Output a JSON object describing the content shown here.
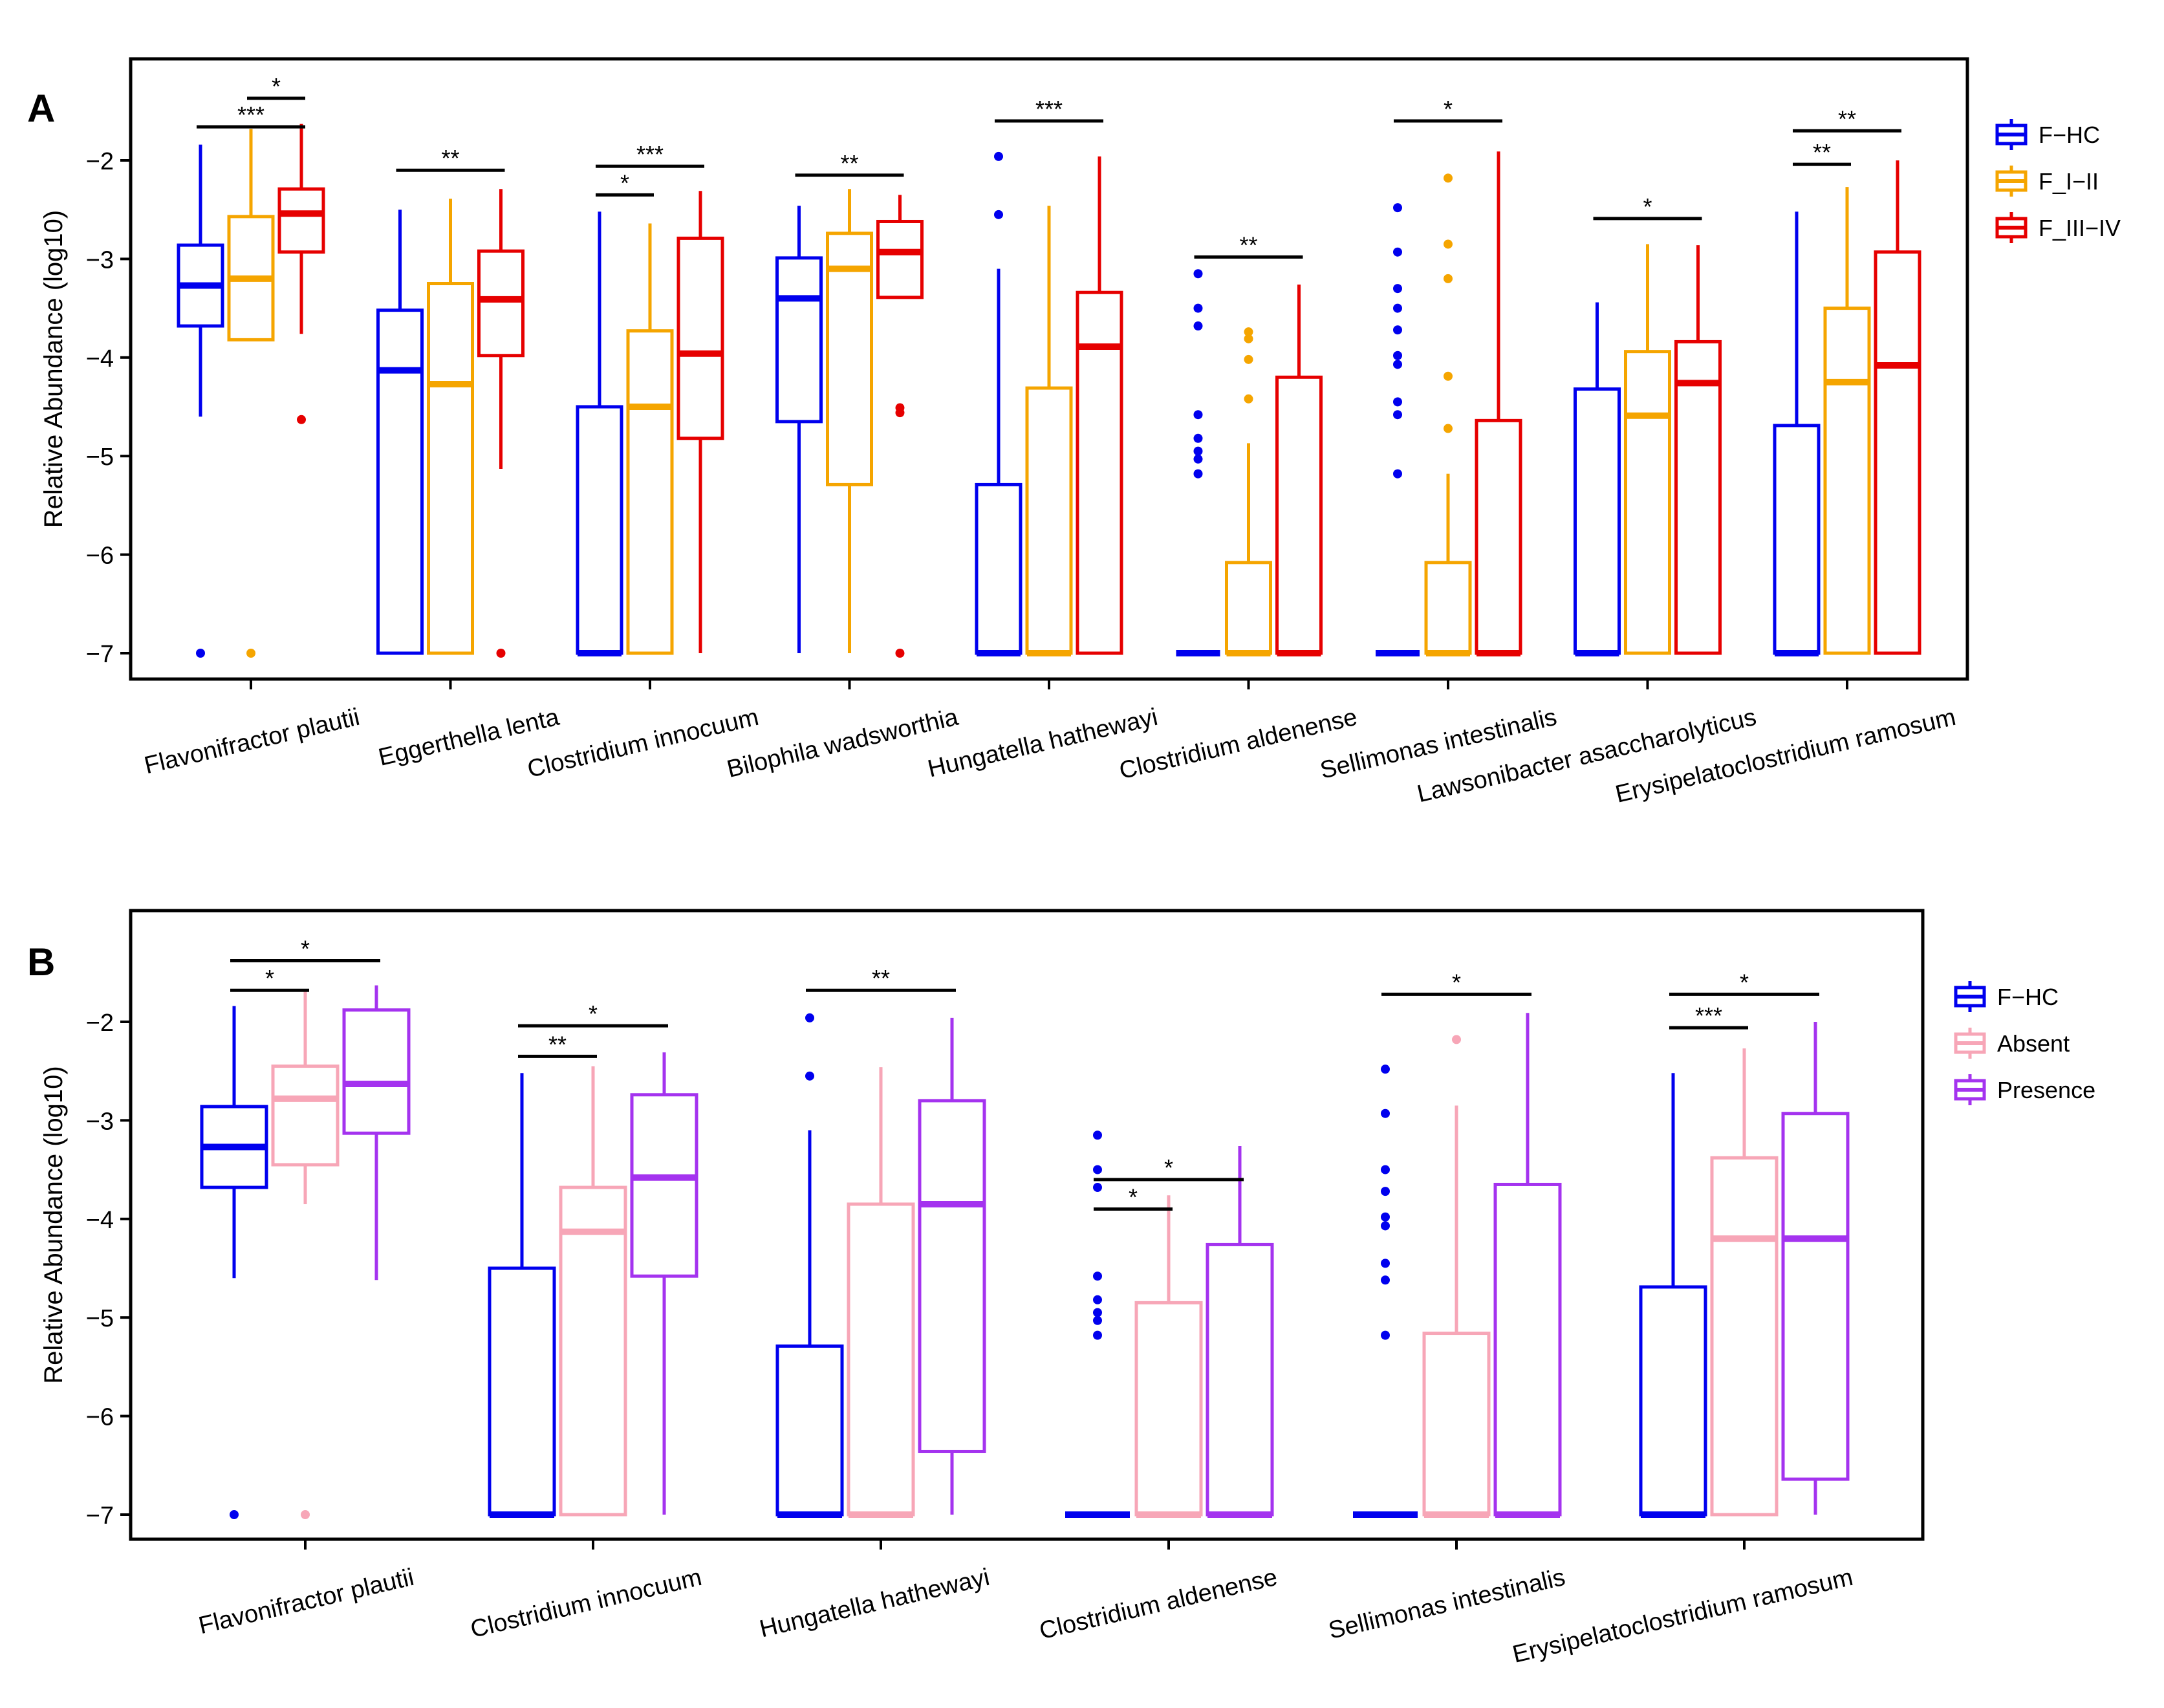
{
  "chart_data": [
    {
      "type": "box",
      "panel_label": "A",
      "ylabel": "Relative Abundance (log10)",
      "ylim": [
        -7.27,
        -1.0
      ],
      "yticks": [
        -2,
        -3,
        -4,
        -5,
        -6,
        -7
      ],
      "ytick_labels": [
        "−2",
        "−3",
        "−4",
        "−5",
        "−6",
        "−7"
      ],
      "categories": [
        "Flavonifractor plautii",
        "Eggerthella lenta",
        "Clostridium innocuum",
        "Bilophila wadsworthia",
        "Hungatella hathewayi",
        "Clostridium aldenense",
        "Sellimonas intestinalis",
        "Lawsonibacter asaccharolyticus",
        "Erysipelatoclostridium ramosum"
      ],
      "series": [
        {
          "name": "F−HC",
          "color": "#0000ee",
          "boxes": [
            {
              "min": -4.6,
              "q1": -3.68,
              "median": -3.27,
              "q3": -2.86,
              "max": -1.84,
              "outliers": [
                -7.0
              ]
            },
            {
              "min": -7.0,
              "q1": -7.0,
              "median": -4.13,
              "q3": -3.52,
              "max": -2.5,
              "outliers": []
            },
            {
              "min": -7.0,
              "q1": -7.0,
              "median": -7.0,
              "q3": -4.5,
              "max": -2.52,
              "outliers": []
            },
            {
              "min": -7.0,
              "q1": -4.65,
              "median": -3.4,
              "q3": -2.99,
              "max": -2.46,
              "outliers": []
            },
            {
              "min": -7.0,
              "q1": -7.0,
              "median": -7.0,
              "q3": -5.29,
              "max": -3.1,
              "outliers": [
                -2.55,
                -1.96
              ]
            },
            {
              "min": -7.0,
              "q1": -7.0,
              "median": -7.0,
              "q3": -7.0,
              "max": -7.0,
              "outliers": [
                -3.15,
                -3.5,
                -3.68,
                -4.58,
                -4.82,
                -4.95,
                -5.03,
                -5.18
              ]
            },
            {
              "min": -7.0,
              "q1": -7.0,
              "median": -7.0,
              "q3": -7.0,
              "max": -7.0,
              "outliers": [
                -2.48,
                -2.93,
                -3.3,
                -3.5,
                -3.72,
                -3.98,
                -4.07,
                -4.45,
                -4.58,
                -5.18
              ]
            },
            {
              "min": -7.0,
              "q1": -7.0,
              "median": -7.0,
              "q3": -4.32,
              "max": -3.44,
              "outliers": []
            },
            {
              "min": -7.0,
              "q1": -7.0,
              "median": -7.0,
              "q3": -4.69,
              "max": -2.52,
              "outliers": []
            }
          ]
        },
        {
          "name": "F_I−II",
          "color": "#f5a500",
          "boxes": [
            {
              "min": -3.82,
              "q1": -3.82,
              "median": -3.2,
              "q3": -2.57,
              "max": -1.68,
              "outliers": [
                -7.0
              ]
            },
            {
              "min": -7.0,
              "q1": -7.0,
              "median": -4.27,
              "q3": -3.25,
              "max": -2.39,
              "outliers": []
            },
            {
              "min": -7.0,
              "q1": -7.0,
              "median": -4.5,
              "q3": -3.73,
              "max": -2.64,
              "outliers": []
            },
            {
              "min": -7.0,
              "q1": -5.29,
              "median": -3.1,
              "q3": -2.74,
              "max": -2.29,
              "outliers": []
            },
            {
              "min": -7.0,
              "q1": -7.0,
              "median": -7.0,
              "q3": -4.31,
              "max": -2.46,
              "outliers": []
            },
            {
              "min": -7.0,
              "q1": -7.0,
              "median": -7.0,
              "q3": -6.08,
              "max": -4.87,
              "outliers": [
                -3.74,
                -3.81,
                -4.02,
                -4.42
              ]
            },
            {
              "min": -7.0,
              "q1": -7.0,
              "median": -7.0,
              "q3": -6.08,
              "max": -5.18,
              "outliers": [
                -2.18,
                -2.85,
                -3.2,
                -4.19,
                -4.72
              ]
            },
            {
              "min": -7.0,
              "q1": -7.0,
              "median": -4.59,
              "q3": -3.94,
              "max": -2.85,
              "outliers": []
            },
            {
              "min": -7.0,
              "q1": -7.0,
              "median": -4.25,
              "q3": -3.5,
              "max": -2.27,
              "outliers": []
            }
          ]
        },
        {
          "name": "F_III−IV",
          "color": "#e60000",
          "boxes": [
            {
              "min": -3.76,
              "q1": -2.93,
              "median": -2.54,
              "q3": -2.29,
              "max": -1.63,
              "outliers": [
                -4.63
              ]
            },
            {
              "min": -5.13,
              "q1": -3.98,
              "median": -3.41,
              "q3": -2.92,
              "max": -2.29,
              "outliers": [
                -7.0
              ]
            },
            {
              "min": -7.0,
              "q1": -4.82,
              "median": -3.96,
              "q3": -2.79,
              "max": -2.31,
              "outliers": []
            },
            {
              "min": -3.39,
              "q1": -3.39,
              "median": -2.93,
              "q3": -2.62,
              "max": -2.35,
              "outliers": [
                -4.51,
                -4.56,
                -7.0
              ]
            },
            {
              "min": -7.0,
              "q1": -7.0,
              "median": -3.89,
              "q3": -3.34,
              "max": -1.96,
              "outliers": []
            },
            {
              "min": -7.0,
              "q1": -7.0,
              "median": -7.0,
              "q3": -4.2,
              "max": -3.26,
              "outliers": []
            },
            {
              "min": -7.0,
              "q1": -7.0,
              "median": -7.0,
              "q3": -4.64,
              "max": -1.91,
              "outliers": []
            },
            {
              "min": -7.0,
              "q1": -7.0,
              "median": -4.26,
              "q3": -3.84,
              "max": -2.86,
              "outliers": []
            },
            {
              "min": -7.0,
              "q1": -7.0,
              "median": -4.08,
              "q3": -2.93,
              "max": -2.0,
              "outliers": []
            }
          ]
        }
      ],
      "significance": [
        {
          "category": 0,
          "from": 0,
          "to": 2,
          "level": -1.66,
          "label": "***"
        },
        {
          "category": 0,
          "from": 1,
          "to": 2,
          "level": -1.37,
          "label": "*"
        },
        {
          "category": 1,
          "from": 0,
          "to": 2,
          "level": -2.1,
          "label": "**"
        },
        {
          "category": 2,
          "from": 0,
          "to": 2,
          "level": -2.06,
          "label": "***"
        },
        {
          "category": 2,
          "from": 0,
          "to": 1,
          "level": -2.35,
          "label": "*"
        },
        {
          "category": 3,
          "from": 0,
          "to": 2,
          "level": -2.15,
          "label": "**"
        },
        {
          "category": 4,
          "from": 0,
          "to": 2,
          "level": -1.6,
          "label": "***"
        },
        {
          "category": 5,
          "from": 0,
          "to": 2,
          "level": -2.98,
          "label": "**"
        },
        {
          "category": 6,
          "from": 0,
          "to": 2,
          "level": -1.6,
          "label": "*"
        },
        {
          "category": 7,
          "from": 0,
          "to": 2,
          "level": -2.59,
          "label": "*"
        },
        {
          "category": 8,
          "from": 0,
          "to": 2,
          "level": -1.7,
          "label": "**"
        },
        {
          "category": 8,
          "from": 0,
          "to": 1,
          "level": -2.04,
          "label": "**"
        }
      ],
      "legend": {
        "position": "right",
        "entries": [
          "F−HC",
          "F_I−II",
          "F_III−IV"
        ]
      }
    },
    {
      "type": "box",
      "panel_label": "B",
      "ylabel": "Relative Abundance (log10)",
      "ylim": [
        -7.27,
        -1.0
      ],
      "yticks": [
        -2,
        -3,
        -4,
        -5,
        -6,
        -7
      ],
      "ytick_labels": [
        "−2",
        "−3",
        "−4",
        "−5",
        "−6",
        "−7"
      ],
      "categories": [
        "Flavonifractor plautii",
        "Clostridium innocuum",
        "Hungatella hathewayi",
        "Clostridium aldenense",
        "Sellimonas intestinalis",
        "Erysipelatoclostridium ramosum"
      ],
      "series": [
        {
          "name": "F−HC",
          "color": "#0000ee",
          "boxes": [
            {
              "min": -4.6,
              "q1": -3.68,
              "median": -3.27,
              "q3": -2.86,
              "max": -1.84,
              "outliers": [
                -7.0
              ]
            },
            {
              "min": -7.0,
              "q1": -7.0,
              "median": -7.0,
              "q3": -4.5,
              "max": -2.52,
              "outliers": []
            },
            {
              "min": -7.0,
              "q1": -7.0,
              "median": -7.0,
              "q3": -5.29,
              "max": -3.1,
              "outliers": [
                -2.55,
                -1.96
              ]
            },
            {
              "min": -7.0,
              "q1": -7.0,
              "median": -7.0,
              "q3": -7.0,
              "max": -7.0,
              "outliers": [
                -3.15,
                -3.5,
                -3.68,
                -4.58,
                -4.82,
                -4.95,
                -5.03,
                -5.18
              ]
            },
            {
              "min": -7.0,
              "q1": -7.0,
              "median": -7.0,
              "q3": -7.0,
              "max": -7.0,
              "outliers": [
                -2.48,
                -2.93,
                -3.5,
                -3.72,
                -3.98,
                -4.07,
                -4.45,
                -4.62,
                -5.18
              ]
            },
            {
              "min": -7.0,
              "q1": -7.0,
              "median": -7.0,
              "q3": -4.69,
              "max": -2.52,
              "outliers": []
            }
          ]
        },
        {
          "name": "Absent",
          "color": "#f7a6b7",
          "boxes": [
            {
              "min": -3.85,
              "q1": -3.45,
              "median": -2.78,
              "q3": -2.45,
              "max": -1.68,
              "outliers": [
                -7.0
              ]
            },
            {
              "min": -7.0,
              "q1": -7.0,
              "median": -4.13,
              "q3": -3.68,
              "max": -2.45,
              "outliers": []
            },
            {
              "min": -7.0,
              "q1": -7.0,
              "median": -7.0,
              "q3": -3.85,
              "max": -2.46,
              "outliers": []
            },
            {
              "min": -7.0,
              "q1": -7.0,
              "median": -7.0,
              "q3": -4.85,
              "max": -3.76,
              "outliers": []
            },
            {
              "min": -7.0,
              "q1": -7.0,
              "median": -7.0,
              "q3": -5.16,
              "max": -2.85,
              "outliers": [
                -2.18
              ]
            },
            {
              "min": -7.0,
              "q1": -7.0,
              "median": -4.2,
              "q3": -3.38,
              "max": -2.27,
              "outliers": []
            }
          ]
        },
        {
          "name": "Presence",
          "color": "#a433ef",
          "boxes": [
            {
              "min": -4.62,
              "q1": -3.13,
              "median": -2.63,
              "q3": -1.88,
              "max": -1.63,
              "outliers": []
            },
            {
              "min": -7.0,
              "q1": -4.58,
              "median": -3.58,
              "q3": -2.74,
              "max": -2.31,
              "outliers": []
            },
            {
              "min": -7.0,
              "q1": -6.36,
              "median": -3.85,
              "q3": -2.8,
              "max": -1.96,
              "outliers": []
            },
            {
              "min": -7.0,
              "q1": -7.0,
              "median": -7.0,
              "q3": -4.26,
              "max": -3.26,
              "outliers": []
            },
            {
              "min": -7.0,
              "q1": -7.0,
              "median": -7.0,
              "q3": -3.65,
              "max": -1.91,
              "outliers": []
            },
            {
              "min": -7.0,
              "q1": -6.64,
              "median": -4.2,
              "q3": -2.93,
              "max": -2.0,
              "outliers": []
            }
          ]
        }
      ],
      "significance": [
        {
          "category": 0,
          "from": 0,
          "to": 2,
          "level": -1.38,
          "label": "*"
        },
        {
          "category": 0,
          "from": 0,
          "to": 1,
          "level": -1.68,
          "label": "*"
        },
        {
          "category": 1,
          "from": 0,
          "to": 2,
          "level": -2.04,
          "label": "*"
        },
        {
          "category": 1,
          "from": 0,
          "to": 1,
          "level": -2.35,
          "label": "**"
        },
        {
          "category": 2,
          "from": 0,
          "to": 2,
          "level": -1.68,
          "label": "**"
        },
        {
          "category": 3,
          "from": 0,
          "to": 2,
          "level": -3.6,
          "label": "*"
        },
        {
          "category": 3,
          "from": 0,
          "to": 1,
          "level": -3.9,
          "label": "*"
        },
        {
          "category": 4,
          "from": 0,
          "to": 2,
          "level": -1.72,
          "label": "*"
        },
        {
          "category": 5,
          "from": 0,
          "to": 2,
          "level": -1.72,
          "label": "*"
        },
        {
          "category": 5,
          "from": 0,
          "to": 1,
          "level": -2.06,
          "label": "***"
        }
      ],
      "legend": {
        "position": "right",
        "entries": [
          "F−HC",
          "Absent",
          "Presence"
        ]
      }
    }
  ]
}
